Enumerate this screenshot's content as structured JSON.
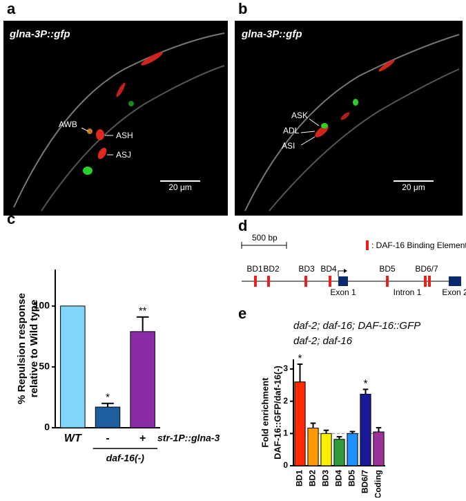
{
  "panels": {
    "a": {
      "label": "a",
      "title": "glna-3P::gfp",
      "cells": [
        "AWB",
        "ASH",
        "ASJ"
      ],
      "scale_bar": "20 μm"
    },
    "b": {
      "label": "b",
      "title": "glna-3P::gfp",
      "cells": [
        "ASK",
        "ADL",
        "ASI"
      ],
      "scale_bar": "20 μm"
    },
    "d": {
      "label": "d",
      "scale": "500 bp",
      "legend": ": DAF-16 Binding Element",
      "sites": [
        "BD1",
        "BD2",
        "BD3",
        "BD4",
        "BD5",
        "BD6/7"
      ],
      "features": [
        "Exon 1",
        "Intron 1",
        "Exon 2"
      ]
    }
  },
  "chart_data": [
    {
      "panel_label": "c",
      "type": "bar",
      "y_label": [
        "% Repulsion response",
        "relative to Wild type"
      ],
      "categories": [
        "WT",
        "-",
        "+"
      ],
      "values": [
        100,
        17,
        79
      ],
      "errors": [
        null,
        3,
        12
      ],
      "colors": [
        "#7fd6fa",
        "#1e5d9e",
        "#8a2ca6"
      ],
      "significance": [
        null,
        "*",
        "**"
      ],
      "row_label": "str-1P::glna-3",
      "group_label": "daf-16(-)",
      "ylim": [
        0,
        130
      ],
      "yticks": [
        0,
        50,
        100
      ]
    },
    {
      "panel_label": "e",
      "type": "bar",
      "legend_lines": [
        "daf-2; daf-16; DAF-16::GFP",
        "daf-2; daf-16"
      ],
      "y_label": [
        "Fold enrichment",
        "DAF-16::GFP/daf-16(-)"
      ],
      "categories": [
        "BD1",
        "BD2",
        "BD3",
        "BD4",
        "BD5",
        "BD6/7",
        "Coding"
      ],
      "values": [
        2.6,
        1.17,
        1.0,
        0.82,
        1.0,
        2.22,
        1.05
      ],
      "errors": [
        0.55,
        0.15,
        0.1,
        0.08,
        0.06,
        0.15,
        0.13
      ],
      "colors": [
        "#ff2a00",
        "#ff9a00",
        "#ffee00",
        "#2f9e3a",
        "#1e90ff",
        "#1a1a99",
        "#9a3399"
      ],
      "significance": [
        "*",
        null,
        null,
        null,
        null,
        "*",
        null
      ],
      "reference_line": 1,
      "ylim": [
        0,
        3.3
      ],
      "yticks": [
        0,
        1,
        2,
        3
      ]
    }
  ]
}
